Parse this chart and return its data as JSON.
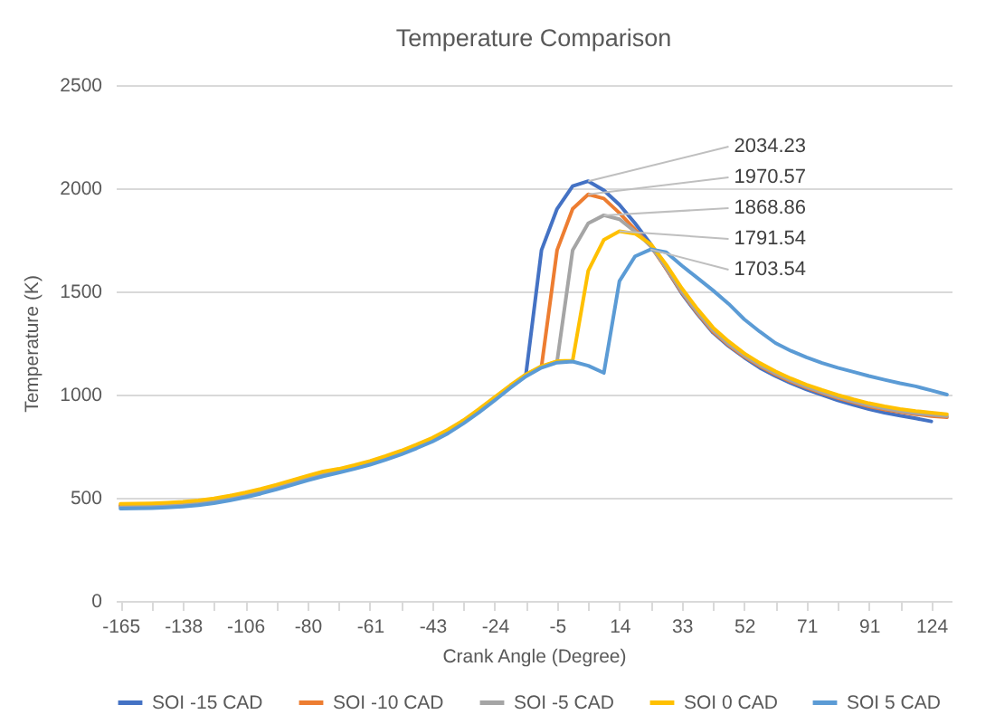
{
  "chart_data": {
    "type": "line",
    "title": "Temperature Comparison",
    "xlabel": "Crank Angle (Degree)",
    "ylabel": "Temperature (K)",
    "categories": [
      "-165",
      null,
      null,
      null,
      "-138",
      null,
      null,
      null,
      "-106",
      null,
      null,
      null,
      "-80",
      null,
      null,
      null,
      "-61",
      null,
      null,
      null,
      "-43",
      null,
      null,
      null,
      "-24",
      null,
      null,
      null,
      "-5",
      null,
      null,
      null,
      "14",
      null,
      null,
      null,
      "33",
      null,
      null,
      null,
      "52",
      null,
      null,
      null,
      "71",
      null,
      null,
      null,
      "91",
      null,
      null,
      null,
      "124",
      null
    ],
    "ylim": [
      0,
      2500
    ],
    "yticks": [
      0,
      500,
      1000,
      1500,
      2000,
      2500
    ],
    "grid": "y",
    "legend": "bottom",
    "series": [
      {
        "name": "SOI -15 CAD",
        "color": "#4472c4",
        "values": [
          459,
          460,
          462,
          465,
          469,
          476,
          486,
          499,
          514,
          532,
          552,
          574,
          596,
          616,
          630,
          648,
          668,
          692,
          718,
          748,
          780,
          820,
          868,
          922,
          980,
          1040,
          1095,
          1700,
          1900,
          2010,
          2034.23,
          1990,
          1920,
          1830,
          1730,
          1610,
          1490,
          1390,
          1300,
          1235,
          1180,
          1130,
          1090,
          1055,
          1025,
          998,
          972,
          950,
          930,
          912,
          898,
          885,
          870,
          null
        ],
        "value_labels": [
          null,
          null,
          null,
          null,
          null,
          null,
          null,
          null,
          null,
          null,
          null,
          null,
          null,
          null,
          null,
          null,
          null,
          null,
          null,
          null,
          null,
          null,
          null,
          null,
          null,
          null,
          null,
          null,
          null,
          null,
          "2034.23",
          null,
          null,
          null,
          null,
          null,
          null,
          null,
          null,
          null,
          null,
          null,
          null,
          null,
          null,
          null,
          null,
          null,
          null,
          null,
          null,
          null,
          null,
          null
        ]
      },
      {
        "name": "SOI -10 CAD",
        "color": "#ed7d31",
        "values": [
          463,
          464,
          466,
          469,
          473,
          480,
          490,
          503,
          518,
          536,
          556,
          578,
          600,
          620,
          634,
          652,
          672,
          696,
          722,
          752,
          784,
          824,
          872,
          926,
          984,
          1040,
          1095,
          1135,
          1700,
          1900,
          1970.57,
          1950,
          1880,
          1800,
          1720,
          1610,
          1495,
          1395,
          1305,
          1240,
          1185,
          1138,
          1098,
          1063,
          1033,
          1007,
          983,
          962,
          943,
          928,
          915,
          905,
          896,
          890
        ],
        "value_labels": [
          null,
          null,
          null,
          null,
          null,
          null,
          null,
          null,
          null,
          null,
          null,
          null,
          null,
          null,
          null,
          null,
          null,
          null,
          null,
          null,
          null,
          null,
          null,
          null,
          null,
          null,
          null,
          null,
          null,
          null,
          "1970.57",
          null,
          null,
          null,
          null,
          null,
          null,
          null,
          null,
          null,
          null,
          null,
          null,
          null,
          null,
          null,
          null,
          null,
          null,
          null,
          null,
          null,
          null,
          null
        ]
      },
      {
        "name": "SOI -5 CAD",
        "color": "#a5a5a5",
        "values": [
          455,
          456,
          458,
          461,
          465,
          472,
          482,
          495,
          510,
          528,
          548,
          570,
          592,
          612,
          630,
          648,
          668,
          692,
          718,
          748,
          780,
          820,
          868,
          922,
          980,
          1040,
          1095,
          1135,
          1160,
          1700,
          1830,
          1868.86,
          1850,
          1790,
          1720,
          1615,
          1500,
          1400,
          1312,
          1245,
          1190,
          1143,
          1103,
          1068,
          1038,
          1012,
          988,
          967,
          948,
          933,
          920,
          910,
          902,
          896
        ],
        "value_labels": [
          null,
          null,
          null,
          null,
          null,
          null,
          null,
          null,
          null,
          null,
          null,
          null,
          null,
          null,
          null,
          null,
          null,
          null,
          null,
          null,
          null,
          null,
          null,
          null,
          null,
          null,
          null,
          null,
          null,
          null,
          null,
          "1868.86",
          null,
          null,
          null,
          null,
          null,
          null,
          null,
          null,
          null,
          null,
          null,
          null,
          null,
          null,
          null,
          null,
          null,
          null,
          null,
          null,
          null,
          null
        ]
      },
      {
        "name": "SOI 0 CAD",
        "color": "#ffc000",
        "values": [
          470,
          471,
          473,
          476,
          480,
          487,
          497,
          510,
          525,
          543,
          563,
          585,
          607,
          627,
          640,
          658,
          678,
          702,
          728,
          758,
          790,
          830,
          876,
          930,
          988,
          1045,
          1098,
          1138,
          1162,
          1165,
          1600,
          1750,
          1791.54,
          1780,
          1730,
          1630,
          1515,
          1415,
          1325,
          1258,
          1200,
          1153,
          1113,
          1078,
          1048,
          1022,
          998,
          977,
          958,
          943,
          930,
          920,
          912,
          905
        ],
        "value_labels": [
          null,
          null,
          null,
          null,
          null,
          null,
          null,
          null,
          null,
          null,
          null,
          null,
          null,
          null,
          null,
          null,
          null,
          null,
          null,
          null,
          null,
          null,
          null,
          null,
          null,
          null,
          null,
          null,
          null,
          null,
          null,
          null,
          "1791.54",
          null,
          null,
          null,
          null,
          null,
          null,
          null,
          null,
          null,
          null,
          null,
          null,
          null,
          null,
          null,
          null,
          null,
          null,
          null,
          null,
          null
        ]
      },
      {
        "name": "SOI 5 CAD",
        "color": "#5b9bd5",
        "values": [
          447,
          448,
          450,
          453,
          457,
          464,
          474,
          487,
          502,
          520,
          540,
          562,
          584,
          604,
          622,
          640,
          660,
          684,
          710,
          740,
          772,
          812,
          860,
          914,
          972,
          1032,
          1088,
          1130,
          1155,
          1160,
          1140,
          1105,
          1550,
          1670,
          1703.54,
          1690,
          1625,
          1565,
          1505,
          1440,
          1365,
          1305,
          1250,
          1212,
          1180,
          1153,
          1130,
          1110,
          1090,
          1072,
          1055,
          1040,
          1020,
          1000
        ],
        "value_labels": [
          null,
          null,
          null,
          null,
          null,
          null,
          null,
          null,
          null,
          null,
          null,
          null,
          null,
          null,
          null,
          null,
          null,
          null,
          null,
          null,
          null,
          null,
          null,
          null,
          null,
          null,
          null,
          null,
          null,
          null,
          null,
          null,
          null,
          null,
          "1703.54",
          null,
          null,
          null,
          null,
          null,
          null,
          null,
          null,
          null,
          null,
          null,
          null,
          null,
          null,
          null,
          null,
          null,
          null,
          null
        ]
      }
    ]
  }
}
